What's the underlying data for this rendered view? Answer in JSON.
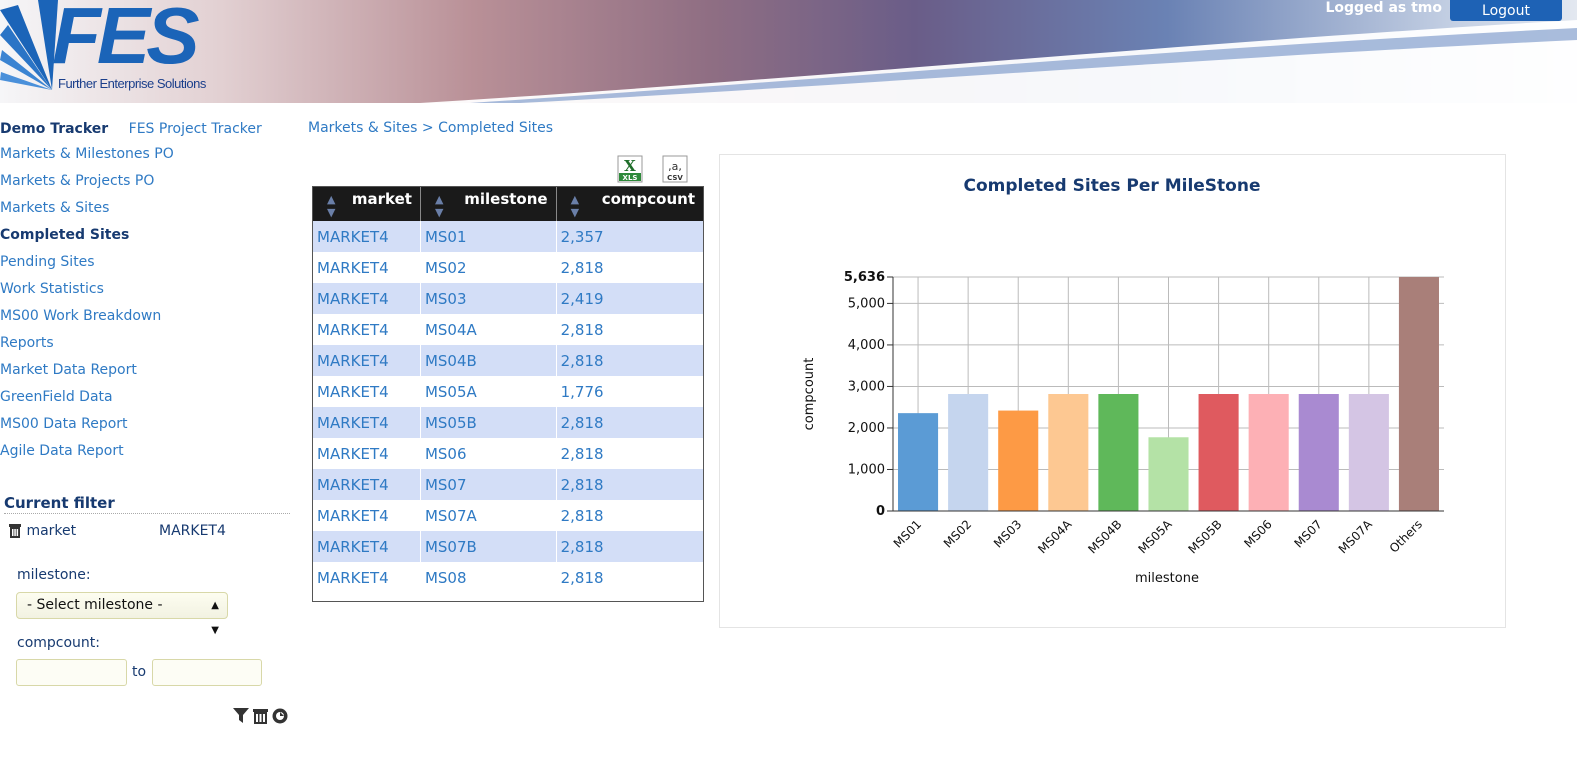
{
  "header": {
    "logo_text": "FES",
    "logo_subtitle": "Further Enterprise Solutions",
    "logged_in_text": "Logged as tmo",
    "logout_label": "Logout"
  },
  "sidebar": {
    "app_name": "Demo Tracker",
    "project_link": "FES Project Tracker",
    "items": [
      {
        "label": "Markets & Milestones PO"
      },
      {
        "label": "Markets & Projects PO"
      },
      {
        "label": "Markets & Sites"
      },
      {
        "label": "Completed Sites"
      },
      {
        "label": "Pending Sites"
      },
      {
        "label": "Work Statistics"
      },
      {
        "label": "MS00 Work Breakdown"
      },
      {
        "label": "Reports"
      },
      {
        "label": "Market Data Report"
      },
      {
        "label": "GreenField Data"
      },
      {
        "label": "MS00 Data Report"
      },
      {
        "label": "Agile Data Report"
      }
    ],
    "active_item": "Completed Sites"
  },
  "filter": {
    "title": "Current filter",
    "market_label": "market",
    "market_value": "MARKET4",
    "milestone_label": "milestone:",
    "milestone_select_value": "- Select milestone -",
    "compcount_label": "compcount:",
    "range_to": "to"
  },
  "breadcrumb": {
    "parent": "Markets & Sites",
    "separator": ">",
    "current": "Completed Sites"
  },
  "exports": {
    "xls_label": "XLS",
    "csv_label": "CSV"
  },
  "table": {
    "columns": [
      "market",
      "milestone",
      "compcount"
    ],
    "rows": [
      [
        "MARKET4",
        "MS01",
        "2,357"
      ],
      [
        "MARKET4",
        "MS02",
        "2,818"
      ],
      [
        "MARKET4",
        "MS03",
        "2,419"
      ],
      [
        "MARKET4",
        "MS04A",
        "2,818"
      ],
      [
        "MARKET4",
        "MS04B",
        "2,818"
      ],
      [
        "MARKET4",
        "MS05A",
        "1,776"
      ],
      [
        "MARKET4",
        "MS05B",
        "2,818"
      ],
      [
        "MARKET4",
        "MS06",
        "2,818"
      ],
      [
        "MARKET4",
        "MS07",
        "2,818"
      ],
      [
        "MARKET4",
        "MS07A",
        "2,818"
      ],
      [
        "MARKET4",
        "MS07B",
        "2,818"
      ],
      [
        "MARKET4",
        "MS08",
        "2,818"
      ]
    ]
  },
  "chart_data": {
    "type": "bar",
    "title": "Completed Sites Per MileStone",
    "xlabel": "milestone",
    "ylabel": "compcount",
    "categories": [
      "MS01",
      "MS02",
      "MS03",
      "MS04A",
      "MS04B",
      "MS05A",
      "MS05B",
      "MS06",
      "MS07",
      "MS07A",
      "Others"
    ],
    "values": [
      2357,
      2818,
      2419,
      2818,
      2818,
      1776,
      2818,
      2818,
      2818,
      2818,
      5636
    ],
    "colors": [
      "#5b9bd5",
      "#c5d5ee",
      "#fd9a45",
      "#fdc892",
      "#5fb85a",
      "#b4e2a6",
      "#df5a5f",
      "#fdb0b5",
      "#a98ad1",
      "#d4c5e4",
      "#a97f79"
    ],
    "yticks": [
      0,
      1000,
      2000,
      3000,
      4000,
      5000,
      5636
    ],
    "ytick_labels": [
      "0",
      "1,000",
      "2,000",
      "3,000",
      "4,000",
      "5,000",
      "5,636"
    ],
    "ylim": [
      0,
      5636
    ],
    "grid": true
  }
}
